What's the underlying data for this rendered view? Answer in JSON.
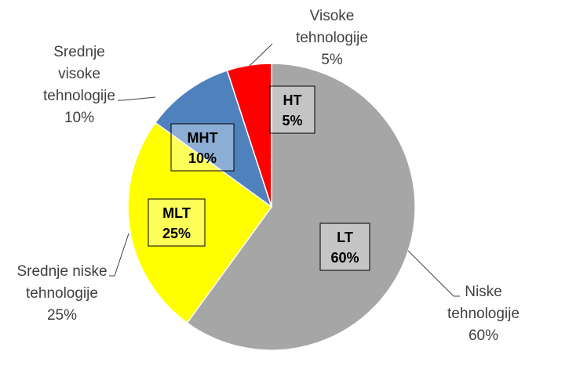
{
  "chart_data": {
    "type": "pie",
    "start_angle_deg": 0,
    "direction": "clockwise",
    "slices": [
      {
        "code": "LT",
        "percent_label": "60%",
        "value": 60,
        "color": "#a6a6a6",
        "name_lines": [
          "Niske",
          "tehnologije"
        ],
        "ext_percent": "60%"
      },
      {
        "code": "MLT",
        "percent_label": "25%",
        "value": 25,
        "color": "#ffff00",
        "name_lines": [
          "Srednje niske",
          "tehnologije"
        ],
        "ext_percent": "25%"
      },
      {
        "code": "MHT",
        "percent_label": "10%",
        "value": 10,
        "color": "#4f81bd",
        "name_lines": [
          "Srednje",
          "visoke",
          "tehnologije"
        ],
        "ext_percent": "10%"
      },
      {
        "code": "HT",
        "percent_label": "5%",
        "value": 5,
        "color": "#ff0000",
        "name_lines": [
          "Visoke",
          "tehnologije"
        ],
        "ext_percent": "5%"
      }
    ]
  }
}
